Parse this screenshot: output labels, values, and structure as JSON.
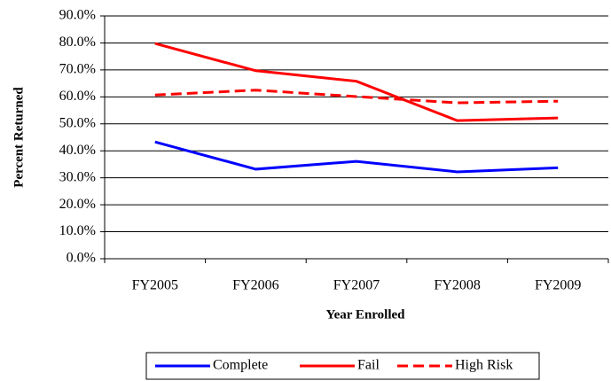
{
  "chart_data": {
    "type": "line",
    "x_label": "Year Enrolled",
    "y_label": "Percent Returned",
    "categories": [
      "FY2005",
      "FY2006",
      "FY2007",
      "FY2008",
      "FY2009"
    ],
    "series": [
      {
        "name": "Complete",
        "color": "#0000ff",
        "dashed": false,
        "values": [
          43.3,
          33.2,
          36.1,
          32.2,
          33.7
        ]
      },
      {
        "name": "Fail",
        "color": "#ff0000",
        "dashed": false,
        "values": [
          79.8,
          69.7,
          65.8,
          51.2,
          52.2
        ]
      },
      {
        "name": "High Risk",
        "color": "#ff0000",
        "dashed": true,
        "values": [
          60.7,
          62.5,
          60.1,
          57.8,
          58.4
        ]
      }
    ],
    "ylim": [
      0,
      90
    ],
    "yticks": [
      {
        "value": 0,
        "label": "0.0%"
      },
      {
        "value": 10,
        "label": "10.0%"
      },
      {
        "value": 20,
        "label": "20.0%"
      },
      {
        "value": 30,
        "label": "30.0%"
      },
      {
        "value": 40,
        "label": "40.0%"
      },
      {
        "value": 50,
        "label": "50.0%"
      },
      {
        "value": 60,
        "label": "60.0%"
      },
      {
        "value": 70,
        "label": "70.0%"
      },
      {
        "value": 80,
        "label": "80.0%"
      },
      {
        "value": 90,
        "label": "90.0%"
      }
    ],
    "grid": true,
    "legend": "bottom"
  }
}
